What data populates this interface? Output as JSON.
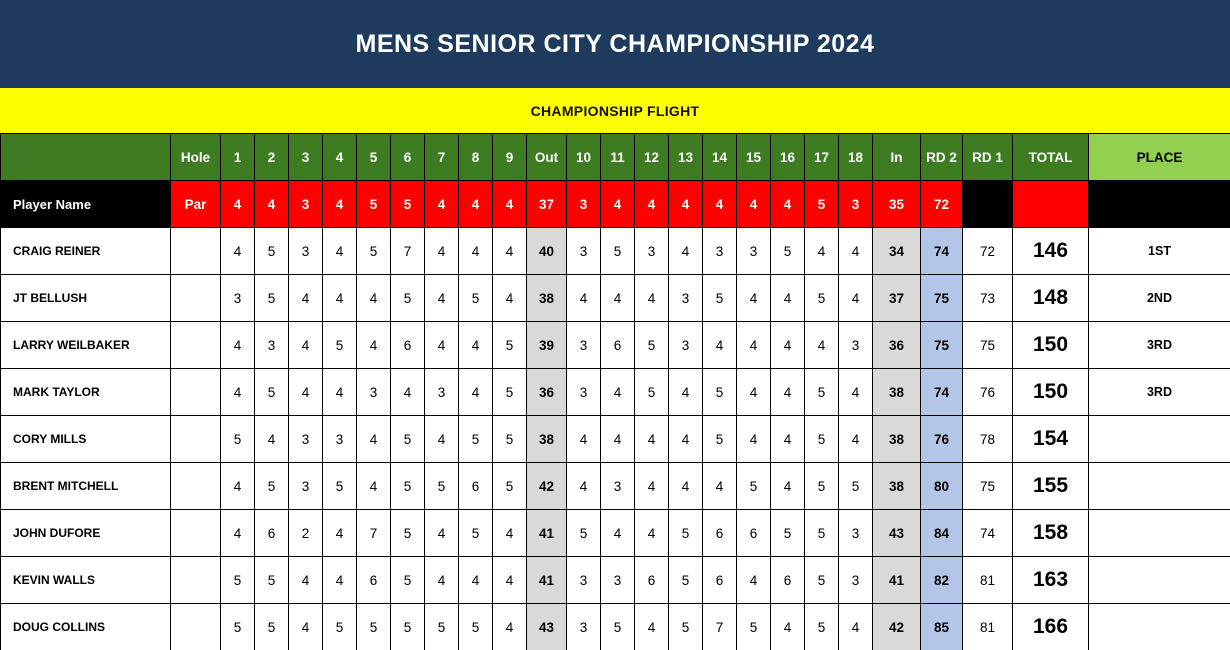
{
  "title": "MENS SENIOR CITY CHAMPIONSHIP 2024",
  "flight": "CHAMPIONSHIP FLIGHT",
  "colors": {
    "navy": "#1e3a5c",
    "yellow": "#ffff00",
    "green": "#3e7c22",
    "lightgreen": "#92d050",
    "red": "#ff0000",
    "gray": "#d9d9d9",
    "lightblue": "#b4c6e7"
  },
  "header": {
    "hole_label": "Hole",
    "front_holes": [
      "1",
      "2",
      "3",
      "4",
      "5",
      "6",
      "7",
      "8",
      "9"
    ],
    "out_label": "Out",
    "back_holes": [
      "10",
      "11",
      "12",
      "13",
      "14",
      "15",
      "16",
      "17",
      "18"
    ],
    "in_label": "In",
    "rd2_label": "RD 2",
    "rd1_label": "RD 1",
    "total_label": "TOTAL",
    "place_label": "PLACE"
  },
  "par_row": {
    "name_label": "Player Name",
    "par_label": "Par",
    "front": [
      4,
      4,
      3,
      4,
      5,
      5,
      4,
      4,
      4
    ],
    "out": 37,
    "back": [
      3,
      4,
      4,
      4,
      4,
      4,
      4,
      5,
      3
    ],
    "in": 35,
    "rd2": 72
  },
  "players": [
    {
      "name": "CRAIG REINER",
      "front": [
        4,
        5,
        3,
        4,
        5,
        7,
        4,
        4,
        4
      ],
      "out": 40,
      "back": [
        3,
        5,
        3,
        4,
        3,
        3,
        5,
        4,
        4
      ],
      "in": 34,
      "rd2": 74,
      "rd1": 72,
      "total": 146,
      "place": "1ST"
    },
    {
      "name": "JT BELLUSH",
      "front": [
        3,
        5,
        4,
        4,
        4,
        5,
        4,
        5,
        4
      ],
      "out": 38,
      "back": [
        4,
        4,
        4,
        3,
        5,
        4,
        4,
        5,
        4
      ],
      "in": 37,
      "rd2": 75,
      "rd1": 73,
      "total": 148,
      "place": "2ND"
    },
    {
      "name": "LARRY WEILBAKER",
      "front": [
        4,
        3,
        4,
        5,
        4,
        6,
        4,
        4,
        5
      ],
      "out": 39,
      "back": [
        3,
        6,
        5,
        3,
        4,
        4,
        4,
        4,
        3
      ],
      "in": 36,
      "rd2": 75,
      "rd1": 75,
      "total": 150,
      "place": "3RD"
    },
    {
      "name": "MARK TAYLOR",
      "front": [
        4,
        5,
        4,
        4,
        3,
        4,
        3,
        4,
        5
      ],
      "out": 36,
      "back": [
        3,
        4,
        5,
        4,
        5,
        4,
        4,
        5,
        4
      ],
      "in": 38,
      "rd2": 74,
      "rd1": 76,
      "total": 150,
      "place": "3RD"
    },
    {
      "name": "CORY MILLS",
      "front": [
        5,
        4,
        3,
        3,
        4,
        5,
        4,
        5,
        5
      ],
      "out": 38,
      "back": [
        4,
        4,
        4,
        4,
        5,
        4,
        4,
        5,
        4
      ],
      "in": 38,
      "rd2": 76,
      "rd1": 78,
      "total": 154,
      "place": ""
    },
    {
      "name": "BRENT MITCHELL",
      "front": [
        4,
        5,
        3,
        5,
        4,
        5,
        5,
        6,
        5
      ],
      "out": 42,
      "back": [
        4,
        3,
        4,
        4,
        4,
        5,
        4,
        5,
        5
      ],
      "in": 38,
      "rd2": 80,
      "rd1": 75,
      "total": 155,
      "place": ""
    },
    {
      "name": "JOHN DUFORE",
      "front": [
        4,
        6,
        2,
        4,
        7,
        5,
        4,
        5,
        4
      ],
      "out": 41,
      "back": [
        5,
        4,
        4,
        5,
        6,
        6,
        5,
        5,
        3
      ],
      "in": 43,
      "rd2": 84,
      "rd1": 74,
      "total": 158,
      "place": ""
    },
    {
      "name": "KEVIN WALLS",
      "front": [
        5,
        5,
        4,
        4,
        6,
        5,
        4,
        4,
        4
      ],
      "out": 41,
      "back": [
        3,
        3,
        6,
        5,
        6,
        4,
        6,
        5,
        3
      ],
      "in": 41,
      "rd2": 82,
      "rd1": 81,
      "total": 163,
      "place": ""
    },
    {
      "name": "DOUG COLLINS",
      "front": [
        5,
        5,
        4,
        5,
        5,
        5,
        5,
        5,
        4
      ],
      "out": 43,
      "back": [
        3,
        5,
        4,
        5,
        7,
        5,
        4,
        5,
        4
      ],
      "in": 42,
      "rd2": 85,
      "rd1": 81,
      "total": 166,
      "place": ""
    }
  ]
}
